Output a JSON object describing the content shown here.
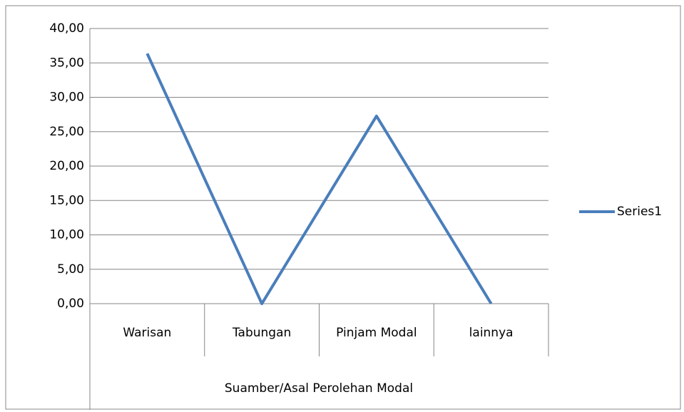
{
  "chart_data": {
    "type": "line",
    "x_label": "Suamber/Asal Perolehan Modal",
    "categories": [
      "Warisan",
      "Tabungan",
      "Pinjam Modal",
      "lainnya"
    ],
    "series": [
      {
        "name": "Series1",
        "color": "#4a7ebb",
        "values": [
          36.36,
          0,
          27.27,
          0
        ]
      }
    ],
    "ylim": [
      0,
      40
    ],
    "yticks": [
      {
        "value": 0,
        "label": "0,00"
      },
      {
        "value": 5,
        "label": "5,00"
      },
      {
        "value": 10,
        "label": "10,00"
      },
      {
        "value": 15,
        "label": "15,00"
      },
      {
        "value": 20,
        "label": "20,00"
      },
      {
        "value": 25,
        "label": "25,00"
      },
      {
        "value": 30,
        "label": "30,00"
      },
      {
        "value": 35,
        "label": "35,00"
      },
      {
        "value": 40,
        "label": "40,00"
      }
    ],
    "grid": true,
    "legend": "right"
  }
}
